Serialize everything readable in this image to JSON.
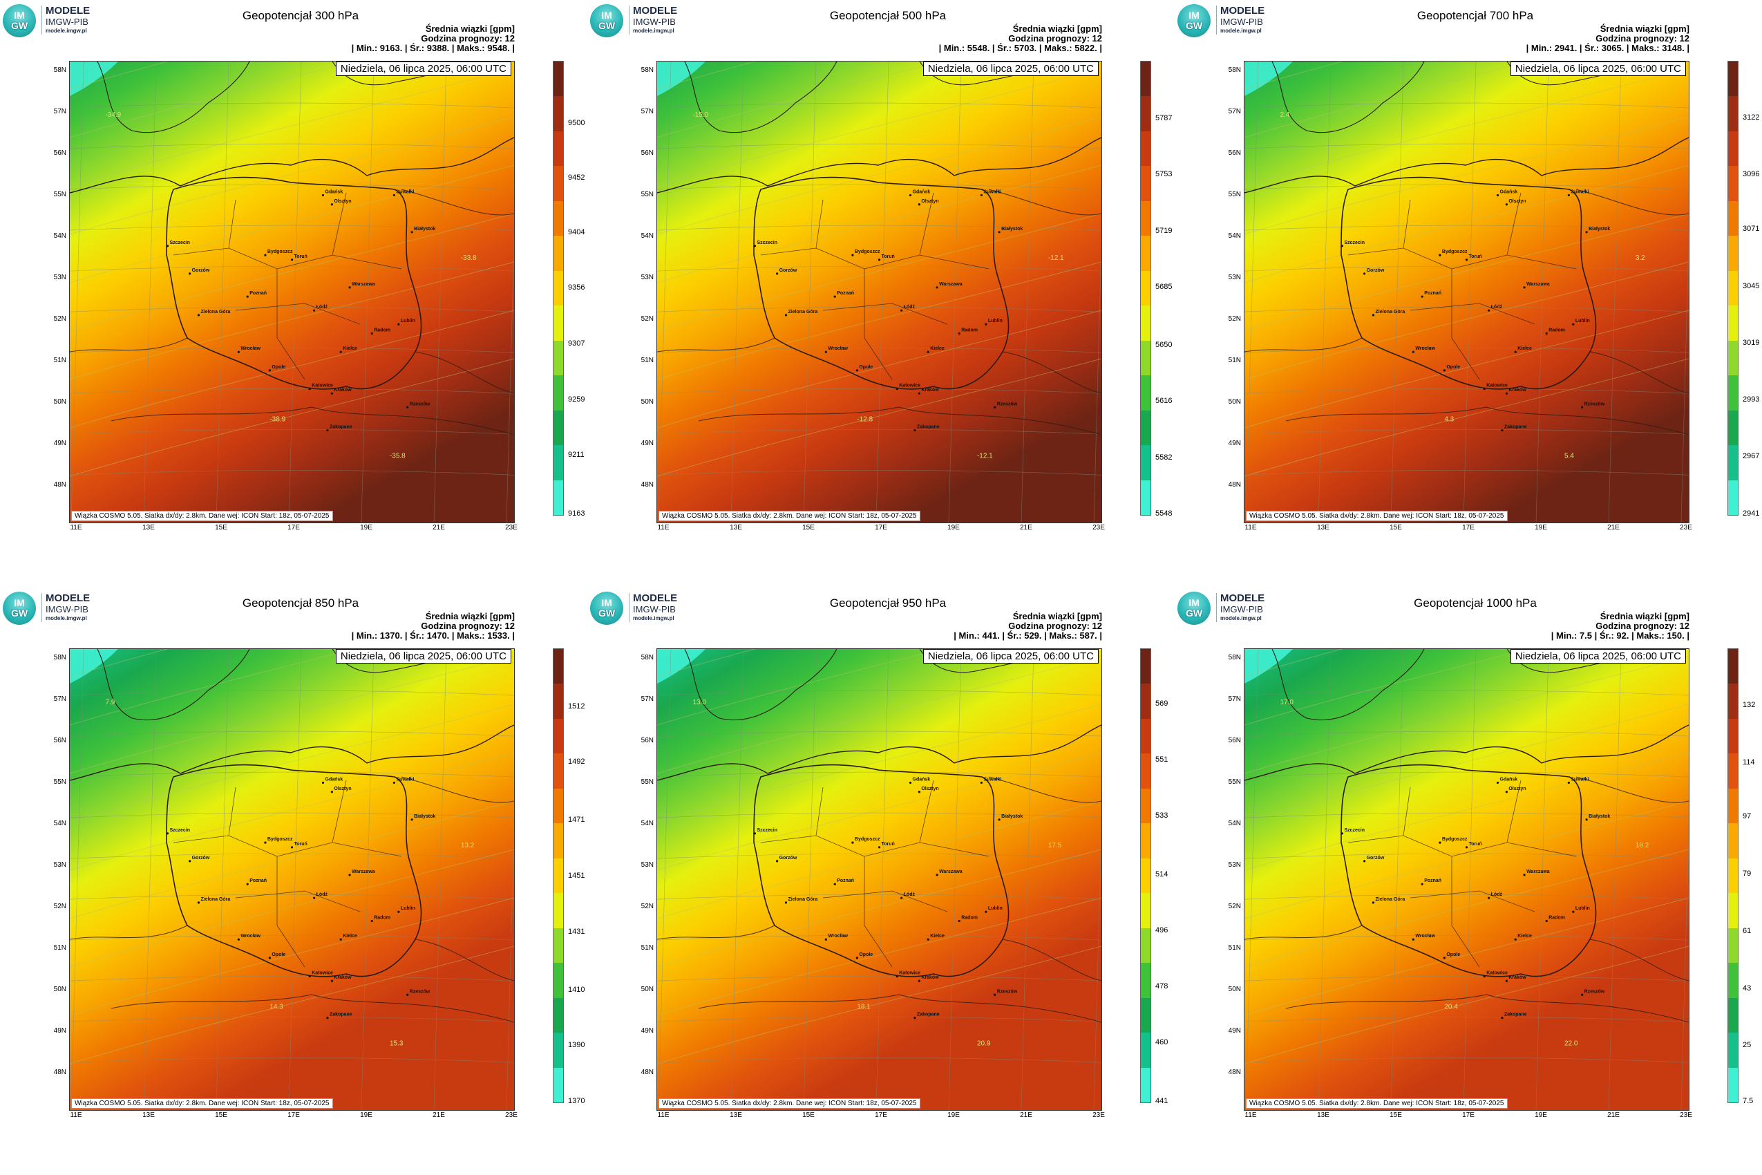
{
  "logo": {
    "name": "MODELE",
    "org": "IMGW-PIB",
    "url": "modele.imgw.pl",
    "badge_top": "IM",
    "badge_bottom": "GW"
  },
  "date_label": "Niedziela, 06 lipca 2025, 06:00 UTC",
  "footer": "Wiązka COSMO 5.05. Siatka dx/dy: 2.8km. Dane wej: ICON Start: 18z, 05-07-2025",
  "subtitle": "Średnia wiązki [gpm]",
  "forecast_hour": "Godzina prognozy: 12",
  "lat_labels": [
    "58N",
    "57N",
    "56N",
    "55N",
    "54N",
    "53N",
    "52N",
    "51N",
    "50N",
    "49N",
    "48N"
  ],
  "lon_labels": [
    "11E",
    "13E",
    "15E",
    "17E",
    "19E",
    "21E",
    "23E"
  ],
  "cities": [
    "Gdańsk",
    "Olsztyn",
    "Szczecin",
    "Bydgoszcz",
    "Toruń",
    "Białystok",
    "Gorzów",
    "Poznań",
    "Warszawa",
    "Zielona Góra",
    "Łódź",
    "Lublin",
    "Wrocław",
    "Kielce",
    "Opole",
    "Radom",
    "Katowice",
    "Kraków",
    "Rzeszów",
    "Zakopane",
    "Suwałki"
  ],
  "colors": {
    "scale": [
      "#3ff0d2",
      "#16c08a",
      "#1aa84e",
      "#3fc13a",
      "#8fd82c",
      "#e6f00e",
      "#fcd000",
      "#f9a900",
      "#f07a00",
      "#e0520d",
      "#c83a10",
      "#9e2d14",
      "#6e2414"
    ],
    "border": "#2a1a10",
    "contour": "#b9c46a"
  },
  "panels": [
    {
      "title": "Geopotencjał 300 hPa",
      "stats": "| Min.: 9163. | Śr.: 9388. | Maks.: 9548. |",
      "ticks": [
        "9500",
        "9452",
        "9404",
        "9356",
        "9307",
        "9259",
        "9211",
        "9163"
      ],
      "bar_levels": [
        {
          "text": "9500",
          "frac": 0.862
        },
        {
          "text": "9452",
          "frac": 0.741
        },
        {
          "text": "9404",
          "frac": 0.62
        },
        {
          "text": "9356",
          "frac": 0.498
        },
        {
          "text": "9307",
          "frac": 0.375
        },
        {
          "text": "9259",
          "frac": 0.252
        },
        {
          "text": "9211",
          "frac": 0.13
        },
        {
          "text": "9163",
          "frac": 0.0
        }
      ],
      "contours": [
        "-34.9",
        "-33.8",
        "-38.9",
        "-35.8"
      ]
    },
    {
      "title": "Geopotencjał 500 hPa",
      "stats": "| Min.: 5548. | Śr.: 5703. | Maks.: 5822. |",
      "ticks": [
        "5787",
        "5753",
        "5719",
        "5685",
        "5650",
        "5616",
        "5582",
        "5548"
      ],
      "bar_levels": [
        {
          "text": "5787",
          "frac": 0.872
        },
        {
          "text": "5753",
          "frac": 0.748
        },
        {
          "text": "5719",
          "frac": 0.624
        },
        {
          "text": "5685",
          "frac": 0.5
        },
        {
          "text": "5650",
          "frac": 0.372
        },
        {
          "text": "5616",
          "frac": 0.248
        },
        {
          "text": "5582",
          "frac": 0.124
        },
        {
          "text": "5548",
          "frac": 0.0
        }
      ],
      "contours": [
        "-15.0",
        "-12.1",
        "-12.8",
        "-12.1"
      ]
    },
    {
      "title": "Geopotencjał 700 hPa",
      "stats": "| Min.: 2941. | Śr.: 3065. | Maks.: 3148. |",
      "ticks": [
        "3122",
        "3096",
        "3071",
        "3045",
        "3019",
        "2993",
        "2967",
        "2941"
      ],
      "bar_levels": [
        {
          "text": "3122",
          "frac": 0.874
        },
        {
          "text": "3096",
          "frac": 0.749
        },
        {
          "text": "3071",
          "frac": 0.628
        },
        {
          "text": "3045",
          "frac": 0.502
        },
        {
          "text": "3019",
          "frac": 0.377
        },
        {
          "text": "2993",
          "frac": 0.251
        },
        {
          "text": "2967",
          "frac": 0.126
        },
        {
          "text": "2941",
          "frac": 0.0
        }
      ],
      "contours": [
        "2.4",
        "3.2",
        "4.3",
        "5.4"
      ]
    },
    {
      "title": "Geopotencjał 850 hPa",
      "stats": "| Min.: 1370. | Śr.: 1470. | Maks.: 1533. |",
      "ticks": [
        "1512",
        "1492",
        "1471",
        "1451",
        "1431",
        "1410",
        "1390",
        "1370"
      ],
      "bar_levels": [
        {
          "text": "1512",
          "frac": 0.871
        },
        {
          "text": "1492",
          "frac": 0.748
        },
        {
          "text": "1471",
          "frac": 0.62
        },
        {
          "text": "1451",
          "frac": 0.497
        },
        {
          "text": "1431",
          "frac": 0.374
        },
        {
          "text": "1410",
          "frac": 0.245
        },
        {
          "text": "1390",
          "frac": 0.123
        },
        {
          "text": "1370",
          "frac": 0.0
        }
      ],
      "contours": [
        "7.9",
        "13.2",
        "14.3",
        "15.3"
      ]
    },
    {
      "title": "Geopotencjał 950 hPa",
      "stats": "| Min.: 441. | Śr.: 529. | Maks.: 587. |",
      "ticks": [
        "569",
        "551",
        "533",
        "514",
        "496",
        "478",
        "460",
        "441"
      ],
      "bar_levels": [
        {
          "text": "569",
          "frac": 0.877
        },
        {
          "text": "551",
          "frac": 0.753
        },
        {
          "text": "533",
          "frac": 0.63
        },
        {
          "text": "514",
          "frac": 0.5
        },
        {
          "text": "496",
          "frac": 0.377
        },
        {
          "text": "478",
          "frac": 0.253
        },
        {
          "text": "460",
          "frac": 0.13
        },
        {
          "text": "441",
          "frac": 0.0
        }
      ],
      "contours": [
        "13.0",
        "17.5",
        "18.1",
        "20.9"
      ]
    },
    {
      "title": "Geopotencjał 1000 hPa",
      "stats": "| Min.: 7.5 | Śr.: 92. | Maks.: 150. |",
      "ticks": [
        "132",
        "114",
        "97",
        "79",
        "61",
        "43",
        "25",
        "7.5"
      ],
      "bar_levels": [
        {
          "text": "132",
          "frac": 0.874
        },
        {
          "text": "114",
          "frac": 0.747
        },
        {
          "text": "97",
          "frac": 0.628
        },
        {
          "text": "79",
          "frac": 0.502
        },
        {
          "text": "61",
          "frac": 0.375
        },
        {
          "text": "43",
          "frac": 0.249
        },
        {
          "text": "25",
          "frac": 0.123
        },
        {
          "text": "7.5",
          "frac": 0.0
        }
      ],
      "contours": [
        "17.0",
        "18.2",
        "20.4",
        "22.0"
      ]
    }
  ]
}
